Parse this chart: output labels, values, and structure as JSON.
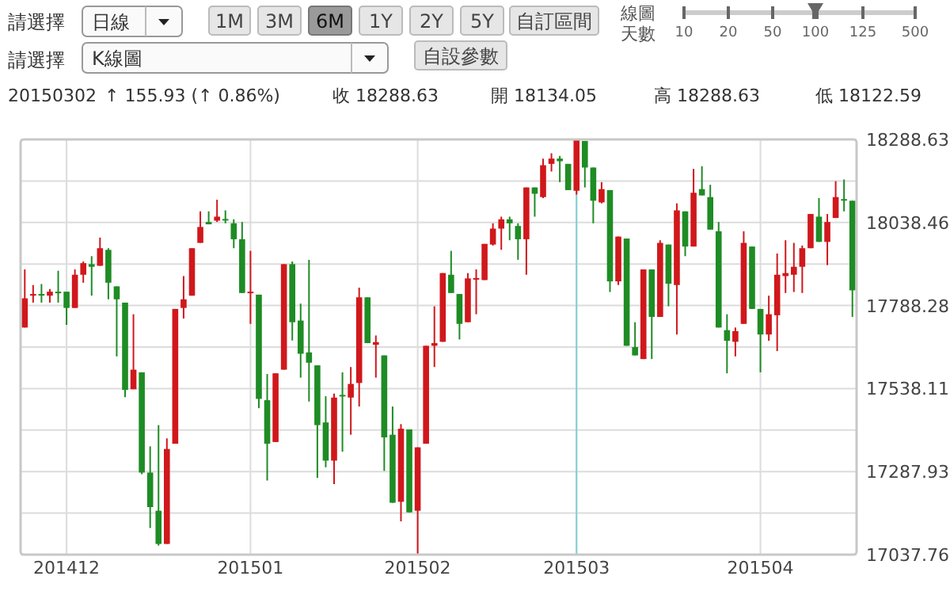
{
  "chart_data": {
    "type": "candlestick",
    "categories": [
      null,
      null,
      null,
      null,
      null,
      "201412",
      null,
      null,
      null,
      null,
      null,
      null,
      null,
      null,
      null,
      null,
      null,
      null,
      null,
      null,
      null,
      null,
      null,
      null,
      null,
      null,
      null,
      "201501",
      null,
      null,
      null,
      null,
      null,
      null,
      null,
      null,
      null,
      null,
      null,
      null,
      null,
      null,
      null,
      null,
      null,
      null,
      null,
      "201502",
      null,
      null,
      null,
      null,
      null,
      null,
      null,
      null,
      null,
      null,
      null,
      null,
      null,
      null,
      null,
      null,
      null,
      null,
      "201503",
      null,
      null,
      null,
      null,
      null,
      null,
      null,
      null,
      null,
      null,
      null,
      null,
      null,
      null,
      null,
      null,
      null,
      null,
      null,
      null,
      null,
      "201504",
      null,
      null,
      null,
      null,
      null,
      null,
      null,
      null,
      null,
      null,
      null
    ],
    "ohlc": [
      [
        17722,
        17897,
        17722,
        17810
      ],
      [
        17818,
        17850,
        17797,
        17823
      ],
      [
        17823,
        17853,
        17797,
        17820
      ],
      [
        17818,
        17838,
        17797,
        17830
      ],
      [
        17830,
        17893,
        17797,
        17828
      ],
      [
        17830,
        17830,
        17730,
        17781
      ],
      [
        17781,
        17897,
        17781,
        17881
      ],
      [
        17881,
        17921,
        17857,
        17916
      ],
      [
        17913,
        17937,
        17818,
        17905
      ],
      [
        17908,
        17993,
        17908,
        17961
      ],
      [
        17956,
        17961,
        17807,
        17857
      ],
      [
        17846,
        17846,
        17635,
        17807
      ],
      [
        17797,
        17797,
        17512,
        17534
      ],
      [
        17536,
        17762,
        17536,
        17595
      ],
      [
        17587,
        17587,
        17280,
        17285
      ],
      [
        17285,
        17364,
        17118,
        17181
      ],
      [
        17170,
        17428,
        17065,
        17070
      ],
      [
        17070,
        17388,
        17070,
        17356
      ],
      [
        17372,
        17778,
        17372,
        17778
      ],
      [
        17781,
        17877,
        17749,
        17807
      ],
      [
        17818,
        17961,
        17818,
        17961
      ],
      [
        17977,
        18072,
        17977,
        18025
      ],
      [
        18040,
        18072,
        18033,
        18033
      ],
      [
        18044,
        18107,
        18040,
        18056
      ],
      [
        18049,
        18075,
        18036,
        18048
      ],
      [
        18036,
        18048,
        17961,
        17988
      ],
      [
        17988,
        18040,
        17826,
        17826
      ],
      [
        17829,
        17953,
        17733,
        17830
      ],
      [
        17821,
        17821,
        17479,
        17507
      ],
      [
        17503,
        17582,
        17261,
        17372
      ],
      [
        17377,
        17584,
        17377,
        17584
      ],
      [
        17595,
        17913,
        17595,
        17913
      ],
      [
        17913,
        17921,
        17683,
        17738
      ],
      [
        17743,
        17794,
        17571,
        17643
      ],
      [
        17647,
        17926,
        17499,
        17616
      ],
      [
        17608,
        17608,
        17269,
        17428
      ],
      [
        17436,
        17515,
        17301,
        17321
      ],
      [
        17321,
        17523,
        17250,
        17511
      ],
      [
        17519,
        17587,
        17348,
        17518
      ],
      [
        17511,
        17603,
        17399,
        17552
      ],
      [
        17555,
        17842,
        17484,
        17813
      ],
      [
        17813,
        17813,
        17675,
        17675
      ],
      [
        17670,
        17698,
        17571,
        17678
      ],
      [
        17638,
        17638,
        17290,
        17391
      ],
      [
        17399,
        17484,
        17194,
        17194
      ],
      [
        17197,
        17431,
        17138,
        17417
      ],
      [
        17415,
        17415,
        17165,
        17165
      ],
      [
        17170,
        17361,
        17037.76,
        17361
      ],
      [
        17372,
        17667,
        17372,
        17667
      ],
      [
        17667,
        17786,
        17603,
        17675
      ],
      [
        17679,
        17886,
        17679,
        17886
      ],
      [
        17881,
        17953,
        17826,
        17826
      ],
      [
        17823,
        17823,
        17686,
        17733
      ],
      [
        17738,
        17886,
        17738,
        17870
      ],
      [
        17870,
        17897,
        17762,
        17871
      ],
      [
        17865,
        17974,
        17865,
        17974
      ],
      [
        17972,
        18036,
        17969,
        18020
      ],
      [
        18020,
        18056,
        17956,
        18048
      ],
      [
        18048,
        18056,
        17985,
        18036
      ],
      [
        18028,
        18036,
        17926,
        17988
      ],
      [
        17988,
        18144,
        17881,
        18144
      ],
      [
        18144,
        18144,
        18056,
        18125
      ],
      [
        18115,
        18231,
        18112,
        18211
      ],
      [
        18215,
        18247,
        18192,
        18231
      ],
      [
        18231,
        18239,
        18160,
        18223
      ],
      [
        18215,
        18215,
        18136,
        18136
      ],
      [
        18134.05,
        18288.63,
        18122.59,
        18288.63
      ],
      [
        18284,
        18284,
        18144,
        18204
      ],
      [
        18204,
        18204,
        18036,
        18104
      ],
      [
        18099,
        18160,
        18096,
        18139
      ],
      [
        18136,
        18136,
        17829,
        17861
      ],
      [
        17861,
        17996,
        17850,
        17996
      ],
      [
        17990,
        17990,
        17667,
        17667
      ],
      [
        17663,
        17738,
        17638,
        17638
      ],
      [
        17627,
        17897,
        17627,
        17897
      ],
      [
        17897,
        17897,
        17627,
        17754
      ],
      [
        17754,
        17985,
        17754,
        17977
      ],
      [
        17972,
        17972,
        17786,
        17854
      ],
      [
        17850,
        18096,
        17701,
        18075
      ],
      [
        18072,
        18072,
        17937,
        17966
      ],
      [
        17966,
        18200,
        17966,
        18128
      ],
      [
        18139,
        18208,
        18120,
        18120
      ],
      [
        18115,
        18152,
        18017,
        18017
      ],
      [
        18012,
        18040,
        17722,
        17722
      ],
      [
        17714,
        17762,
        17584,
        17682
      ],
      [
        17679,
        17722,
        17635,
        17711
      ],
      [
        17733,
        18012,
        17733,
        17977
      ],
      [
        17966,
        17966,
        17778,
        17778
      ],
      [
        17778,
        17778,
        17587,
        17701
      ],
      [
        17701,
        17818,
        17682,
        17762
      ],
      [
        17759,
        17945,
        17651,
        17881
      ],
      [
        17877,
        17985,
        17826,
        17886
      ],
      [
        17881,
        17977,
        17829,
        17905
      ],
      [
        17905,
        17969,
        17826,
        17961
      ],
      [
        17961,
        18064,
        17961,
        18064
      ],
      [
        18056,
        18112,
        17980,
        17980
      ],
      [
        17980,
        18064,
        17910,
        18040
      ],
      [
        18052,
        18163,
        18052,
        18115
      ],
      [
        18109,
        18168,
        18072,
        18108
      ],
      [
        18104,
        18104,
        17754,
        17834
      ]
    ],
    "colors": [
      "#d0181c",
      "#d0181c",
      "#1e8c24",
      "#d0181c",
      "#1e8c24",
      "#1e8c24",
      "#d0181c",
      "#d0181c",
      "#1e8c24",
      "#d0181c",
      "#1e8c24",
      "#1e8c24",
      "#1e8c24",
      "#d0181c",
      "#1e8c24",
      "#1e8c24",
      "#1e8c24",
      "#d0181c",
      "#d0181c",
      "#d0181c",
      "#d0181c",
      "#d0181c",
      "#1e8c24",
      "#d0181c",
      "#1e8c24",
      "#1e8c24",
      "#1e8c24",
      "#d0181c",
      "#1e8c24",
      "#1e8c24",
      "#d0181c",
      "#d0181c",
      "#1e8c24",
      "#1e8c24",
      "#1e8c24",
      "#1e8c24",
      "#1e8c24",
      "#d0181c",
      "#1e8c24",
      "#d0181c",
      "#d0181c",
      "#1e8c24",
      "#d0181c",
      "#1e8c24",
      "#1e8c24",
      "#d0181c",
      "#1e8c24",
      "#d0181c",
      "#d0181c",
      "#d0181c",
      "#d0181c",
      "#1e8c24",
      "#1e8c24",
      "#d0181c",
      "#d0181c",
      "#d0181c",
      "#d0181c",
      "#d0181c",
      "#1e8c24",
      "#1e8c24",
      "#d0181c",
      "#1e8c24",
      "#d0181c",
      "#d0181c",
      "#1e8c24",
      "#1e8c24",
      "#d0181c",
      "#1e8c24",
      "#1e8c24",
      "#d0181c",
      "#1e8c24",
      "#d0181c",
      "#1e8c24",
      "#1e8c24",
      "#d0181c",
      "#1e8c24",
      "#d0181c",
      "#1e8c24",
      "#d0181c",
      "#1e8c24",
      "#d0181c",
      "#1e8c24",
      "#1e8c24",
      "#1e8c24",
      "#1e8c24",
      "#d0181c",
      "#d0181c",
      "#1e8c24",
      "#1e8c24",
      "#d0181c",
      "#d0181c",
      "#d0181c",
      "#d0181c",
      "#d0181c",
      "#d0181c",
      "#1e8c24",
      "#d0181c",
      "#d0181c",
      "#1e8c24",
      "#1e8c24"
    ],
    "ylim": [
      17037.76,
      18288.63
    ],
    "yticks": [
      17037.76,
      {
        "value": 17162.845,
        "label": null
      },
      17287.93,
      {
        "value": 17413.02,
        "label": null
      },
      17538.11,
      {
        "value": 17663.195,
        "label": null
      },
      17788.28,
      {
        "value": 17913.37,
        "label": null
      },
      18038.46,
      {
        "value": 18163.545,
        "label": null
      },
      18288.63
    ],
    "grid": true,
    "ref_lines": [
      {
        "axis": "x",
        "value": "201503",
        "color": "#7fd0d4"
      }
    ],
    "annotations": [
      "請選擇",
      "日線",
      "1M",
      "3M",
      "6M",
      "1Y",
      "2Y",
      "5Y",
      "自訂區間",
      "線圖天數",
      "10",
      "20",
      "50",
      "100",
      "125",
      "500",
      "請選擇",
      "K線圖",
      "自設參數",
      "20150302",
      "↑ 155.93 (↑ 0.86%)",
      "收 18288.63",
      "開 18134.05",
      "高 18288.63",
      "低 18122.59"
    ]
  }
}
